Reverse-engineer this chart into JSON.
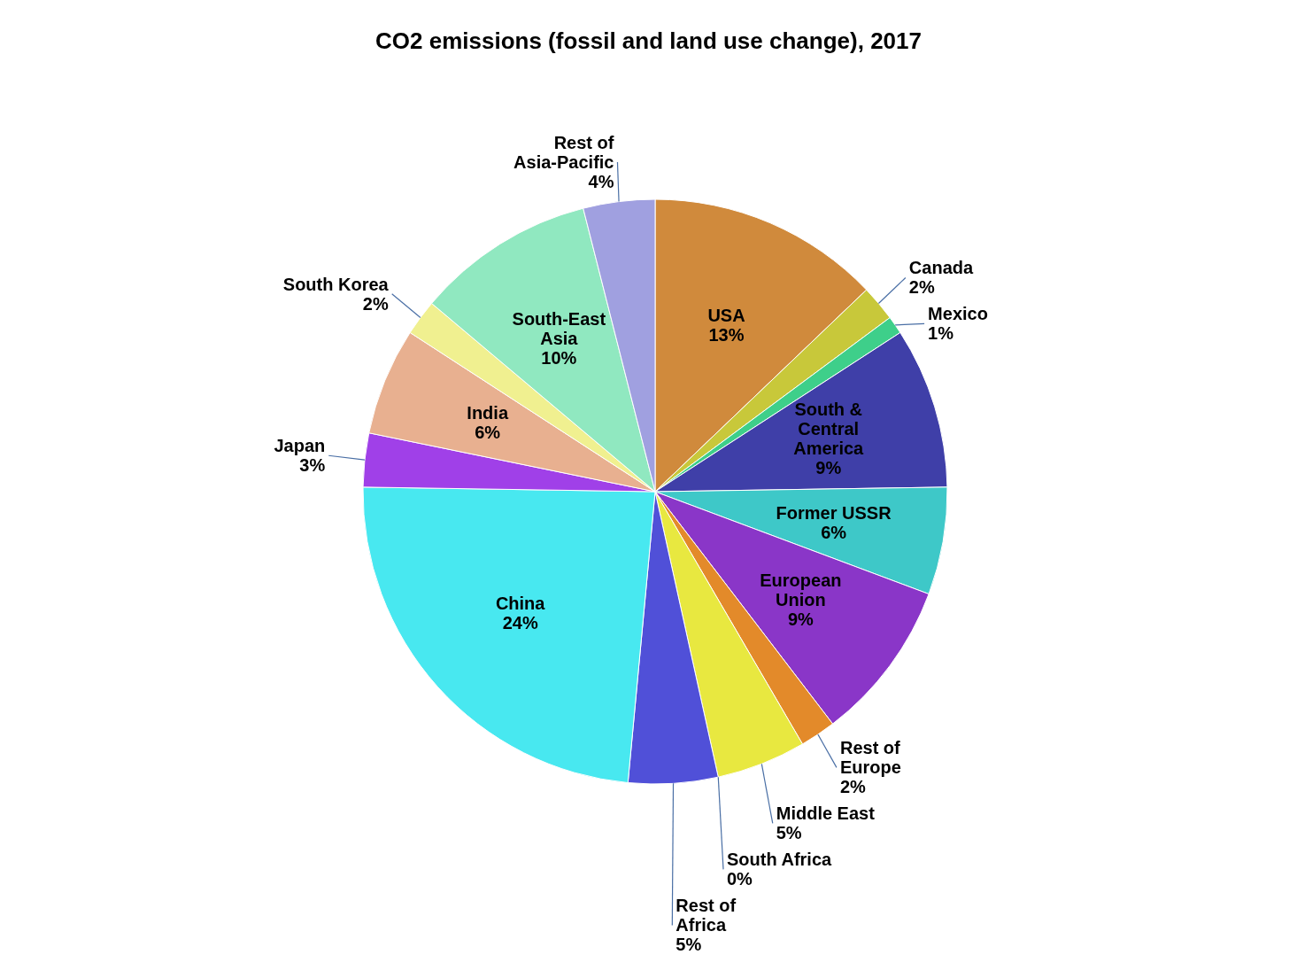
{
  "chart_data": {
    "type": "pie",
    "title": "CO2 emissions (fossil and land use change), 2017",
    "categories": [
      "USA",
      "Canada",
      "Mexico",
      "South & Central America",
      "Former USSR",
      "European Union",
      "Rest of Europe",
      "Middle East",
      "South Africa",
      "Rest of Africa",
      "China",
      "Japan",
      "India",
      "South Korea",
      "South-East Asia",
      "Rest of Asia-Pacific"
    ],
    "values": [
      13,
      2,
      1,
      9,
      6,
      9,
      2,
      5,
      0,
      5,
      24,
      3,
      6,
      2,
      10,
      4
    ],
    "value_labels": [
      "13%",
      "2%",
      "1%",
      "9%",
      "6%",
      "9%",
      "2%",
      "5%",
      "0%",
      "5%",
      "24%",
      "3%",
      "6%",
      "2%",
      "10%",
      "4%"
    ],
    "colors": [
      "#d08a3c",
      "#c8c83a",
      "#3ecf8a",
      "#3f3fa8",
      "#3ec8c8",
      "#8a36c8",
      "#e38a2a",
      "#e8e840",
      "#5fb0e0",
      "#5050d8",
      "#48e8f0",
      "#a040e8",
      "#e8b090",
      "#f0f090",
      "#90e8c0",
      "#a0a0e0"
    ]
  }
}
